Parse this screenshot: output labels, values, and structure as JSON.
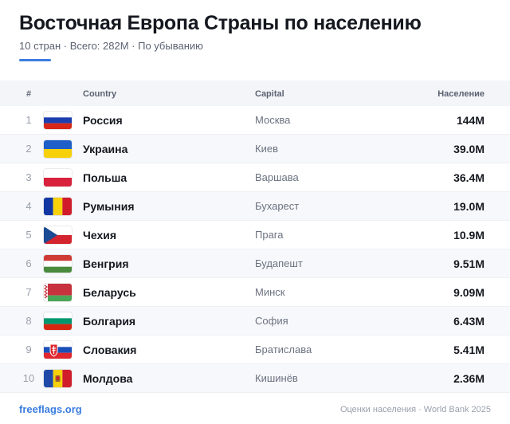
{
  "header": {
    "title": "Восточная Европа Страны по населению",
    "subtitle": "10 стран · Всего: 282M · По убыванию",
    "accent_color": "#3b7de0"
  },
  "table": {
    "columns": {
      "num": "#",
      "country": "Country",
      "capital": "Capital",
      "population": "Население"
    },
    "rows": [
      {
        "rank": "1",
        "flag": "russia-flag-icon",
        "country": "Россия",
        "capital": "Москва",
        "population": "144M"
      },
      {
        "rank": "2",
        "flag": "ukraine-flag-icon",
        "country": "Украина",
        "capital": "Киев",
        "population": "39.0M"
      },
      {
        "rank": "3",
        "flag": "poland-flag-icon",
        "country": "Польша",
        "capital": "Варшава",
        "population": "36.4M"
      },
      {
        "rank": "4",
        "flag": "romania-flag-icon",
        "country": "Румыния",
        "capital": "Бухарест",
        "population": "19.0M"
      },
      {
        "rank": "5",
        "flag": "czechia-flag-icon",
        "country": "Чехия",
        "capital": "Прага",
        "population": "10.9M"
      },
      {
        "rank": "6",
        "flag": "hungary-flag-icon",
        "country": "Венгрия",
        "capital": "Будапешт",
        "population": "9.51M"
      },
      {
        "rank": "7",
        "flag": "belarus-flag-icon",
        "country": "Беларусь",
        "capital": "Минск",
        "population": "9.09M"
      },
      {
        "rank": "8",
        "flag": "bulgaria-flag-icon",
        "country": "Болгария",
        "capital": "София",
        "population": "6.43M"
      },
      {
        "rank": "9",
        "flag": "slovakia-flag-icon",
        "country": "Словакия",
        "capital": "Братислава",
        "population": "5.41M"
      },
      {
        "rank": "10",
        "flag": "moldova-flag-icon",
        "country": "Молдова",
        "capital": "Кишинёв",
        "population": "2.36M"
      }
    ]
  },
  "footer": {
    "brand": "freeflags.org",
    "source": "Оценки населения · World Bank 2025"
  }
}
